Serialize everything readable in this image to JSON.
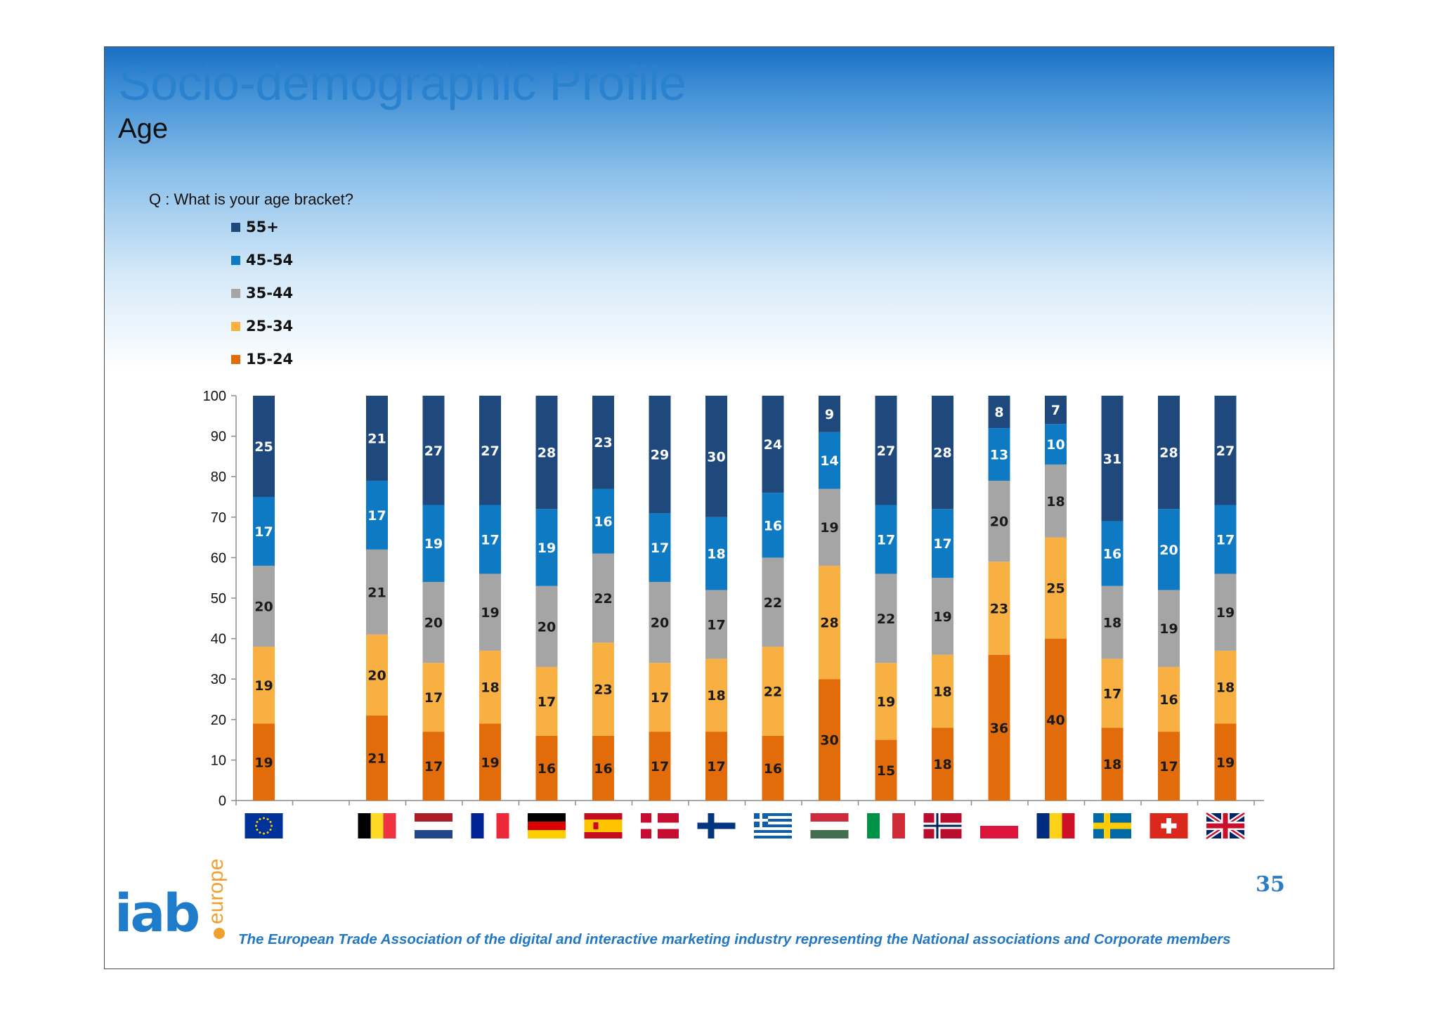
{
  "header": {
    "title": "Socio-demographic Profile",
    "subtitle": "Age"
  },
  "question": "Q : What is your age bracket?",
  "page_number": "35",
  "footer": {
    "tagline": "The European Trade Association of the digital and interactive marketing industry representing the National associations and Corporate members",
    "logo_main": "iab",
    "logo_side": "europe"
  },
  "colors": {
    "55+": "#1f497d",
    "45-54": "#0e7ac4",
    "35-44": "#a5a5a5",
    "25-34": "#f8b043",
    "15-24": "#e36c0a",
    "title_blue": "#2a82cf",
    "footer_blue": "#2278c4",
    "logo_blue": "#1f7ccb",
    "logo_orange": "#f0a030"
  },
  "chart_data": {
    "type": "bar",
    "stacked": true,
    "ylim": [
      0,
      100
    ],
    "yticks": [
      0,
      10,
      20,
      30,
      40,
      50,
      60,
      70,
      80,
      90,
      100
    ],
    "legend_position": "top-left",
    "categories": [
      "EU",
      "",
      "BE",
      "NL",
      "FR",
      "DE",
      "ES",
      "DK",
      "FI",
      "GR",
      "HU",
      "IT",
      "NO",
      "PL",
      "RO",
      "SE",
      "CH",
      "UK"
    ],
    "category_flags": [
      "eu",
      "",
      "be",
      "nl",
      "fr",
      "de",
      "es",
      "dk",
      "fi",
      "gr",
      "hu",
      "it",
      "no",
      "pl",
      "ro",
      "se",
      "ch",
      "uk"
    ],
    "series": [
      {
        "name": "15-24",
        "values": [
          19,
          null,
          21,
          17,
          19,
          16,
          16,
          17,
          17,
          16,
          30,
          15,
          18,
          36,
          40,
          18,
          17,
          19
        ]
      },
      {
        "name": "25-34",
        "values": [
          19,
          null,
          20,
          17,
          18,
          17,
          23,
          17,
          18,
          22,
          28,
          19,
          18,
          23,
          25,
          17,
          16,
          18
        ]
      },
      {
        "name": "35-44",
        "values": [
          20,
          null,
          21,
          20,
          19,
          20,
          22,
          20,
          17,
          22,
          19,
          22,
          19,
          20,
          18,
          18,
          19,
          19
        ]
      },
      {
        "name": "45-54",
        "values": [
          17,
          null,
          17,
          19,
          17,
          19,
          16,
          17,
          18,
          16,
          14,
          17,
          17,
          13,
          10,
          16,
          20,
          17
        ]
      },
      {
        "name": "55+",
        "values": [
          25,
          null,
          21,
          27,
          27,
          28,
          23,
          29,
          30,
          24,
          9,
          27,
          28,
          8,
          7,
          31,
          28,
          27
        ]
      }
    ],
    "legend_order": [
      "55+",
      "45-54",
      "35-44",
      "25-34",
      "15-24"
    ]
  }
}
